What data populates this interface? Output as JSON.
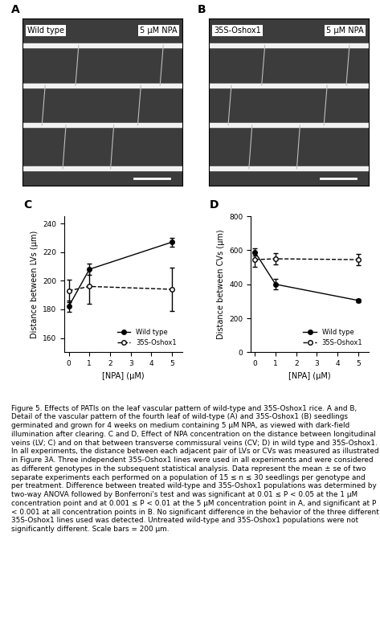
{
  "panels": [
    {
      "label": "A",
      "texts": [
        "Wild type",
        "5 μM NPA"
      ]
    },
    {
      "label": "B",
      "texts": [
        "35S-Oshox1",
        "5 μM NPA"
      ]
    }
  ],
  "chart_data": [
    {
      "type": "line",
      "title": "C",
      "x_label": "[NPA] (μM)",
      "y_label": "Distance between LVs (μm)",
      "x": [
        0,
        1,
        5
      ],
      "series": [
        {
          "name": "Wild type",
          "color": "#000000",
          "marker": "filled",
          "line_style": "solid",
          "values": [
            182,
            208,
            227
          ],
          "errors": [
            4,
            4,
            3
          ]
        },
        {
          "name": "35S-Oshox1",
          "color": "#000000",
          "marker": "open",
          "line_style": "dashed",
          "values": [
            193,
            196,
            194
          ],
          "errors": [
            8,
            12,
            15
          ]
        }
      ],
      "xlim": [
        -0.2,
        5.5
      ],
      "xticks": [
        0,
        1,
        2,
        3,
        4,
        5
      ],
      "ylim": [
        150,
        245
      ],
      "yticks": [
        160,
        180,
        200,
        220,
        240
      ],
      "legend": "lower right"
    },
    {
      "type": "line",
      "title": "D",
      "x_label": "[NPA] (μM)",
      "y_label": "Distance between CVs (μm)",
      "x": [
        0,
        1,
        5
      ],
      "series": [
        {
          "name": "Wild type",
          "color": "#000000",
          "marker": "filled",
          "line_style": "solid",
          "values": [
            590,
            400,
            305
          ],
          "errors": [
            20,
            30,
            10
          ]
        },
        {
          "name": "35S-Oshox1",
          "color": "#000000",
          "marker": "open",
          "line_style": "dashed",
          "values": [
            545,
            550,
            545
          ],
          "errors": [
            40,
            35,
            35
          ]
        }
      ],
      "xlim": [
        -0.2,
        5.5
      ],
      "xticks": [
        0,
        1,
        2,
        3,
        4,
        5
      ],
      "ylim": [
        0,
        800
      ],
      "yticks": [
        0,
        200,
        400,
        600,
        800
      ],
      "legend": "lower right"
    }
  ],
  "caption": "Figure 5. Effects of PATIs on the leaf vascular pattern of wild-type and 35S-Oshox1 rice. A and B, Detail of the vascular pattern of the fourth leaf of wild-type (A) and 35S-Oshox1 (B) seedlings germinated and grown for 4 weeks on medium containing 5 μM NPA, as viewed with dark-field illumination after clearing. C and D, Effect of NPA concentration on the distance between longitudinal veins (LV; C) and on that between transverse commissural veins (CV; D) in wild type and 35S-Oshox1. In all experiments, the distance between each adjacent pair of LVs or CVs was measured as illustrated in Figure 3A. Three independent 35S-Oshox1 lines were used in all experiments and were considered as different genotypes in the subsequent statistical analysis. Data represent the mean ± se of two separate experiments each performed on a population of 15 ≤ n ≤ 30 seedlings per genotype and per treatment. Difference between treated wild-type and 35S-Oshox1 populations was determined by two-way ANOVA followed by Bonferroni's test and was significant at 0.01 ≤ P < 0.05 at the 1 μM concentration point and at 0.001 ≤ P < 0.01 at the 5 μM concentration point in A, and significant at P < 0.001 at all concentration points in B. No significant difference in the behavior of the three different 35S-Oshox1 lines used was detected. Untreated wild-type and 35S-Oshox1 populations were not significantly different. Scale bars = 200 μm."
}
